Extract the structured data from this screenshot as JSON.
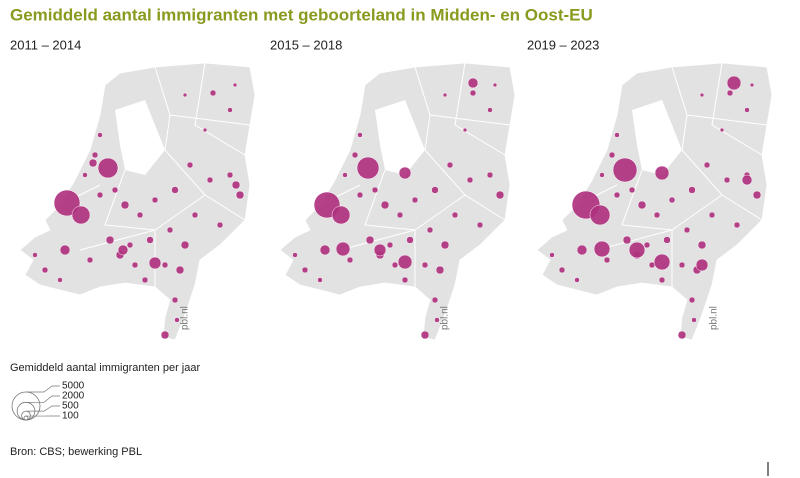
{
  "title": "Gemiddeld aantal immigranten met geboorteland in Midden- en Oost-EU",
  "panels": [
    "2011 – 2014",
    "2015 – 2018",
    "2019 – 2023"
  ],
  "watermark": "pbl.nl",
  "legend": {
    "title": "Gemiddeld aantal immigranten per jaar",
    "values": [
      5000,
      2000,
      500,
      100
    ]
  },
  "source": "Bron: CBS; bewerking PBL"
}
